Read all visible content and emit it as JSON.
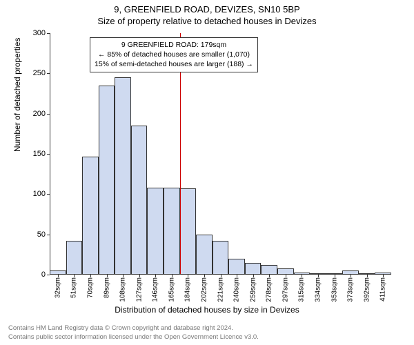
{
  "title": "9, GREENFIELD ROAD, DEVIZES, SN10 5BP",
  "subtitle": "Size of property relative to detached houses in Devizes",
  "ylabel": "Number of detached properties",
  "xlabel": "Distribution of detached houses by size in Devizes",
  "chart": {
    "type": "histogram",
    "bar_fill": "#cfdaf0",
    "bar_stroke": "#333333",
    "marker_color": "#cc0000",
    "background": "#ffffff",
    "ylim_max": 300,
    "ytick_step": 50,
    "categories": [
      "32sqm",
      "51sqm",
      "70sqm",
      "89sqm",
      "108sqm",
      "127sqm",
      "146sqm",
      "165sqm",
      "184sqm",
      "202sqm",
      "221sqm",
      "240sqm",
      "259sqm",
      "278sqm",
      "297sqm",
      "315sqm",
      "334sqm",
      "353sqm",
      "373sqm",
      "392sqm",
      "411sqm"
    ],
    "values": [
      5,
      42,
      147,
      235,
      245,
      185,
      108,
      108,
      107,
      50,
      42,
      20,
      15,
      12,
      8,
      3,
      2,
      2,
      5,
      2,
      3
    ],
    "marker_index": 8,
    "annotation": {
      "line1": "9 GREENFIELD ROAD: 179sqm",
      "line2": "← 85% of detached houses are smaller (1,070)",
      "line3": "15% of semi-detached houses are larger (188) →"
    }
  },
  "footer": {
    "line1": "Contains HM Land Registry data © Crown copyright and database right 2024.",
    "line2": "Contains public sector information licensed under the Open Government Licence v3.0."
  }
}
